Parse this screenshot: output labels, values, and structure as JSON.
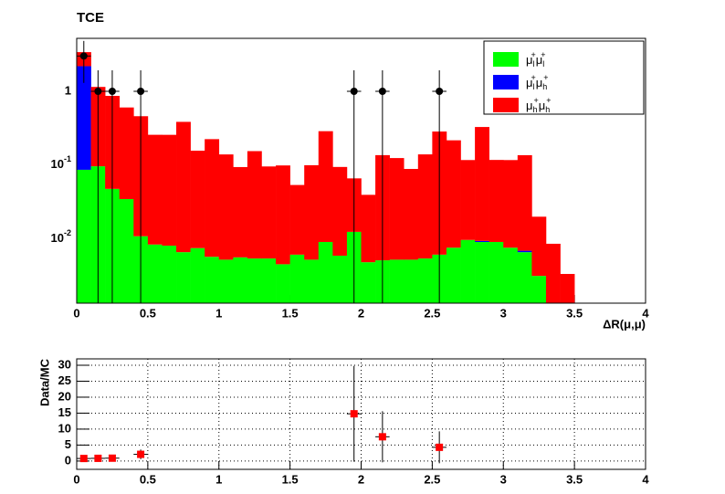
{
  "chart_data": [
    {
      "type": "histogram",
      "title": "TCE",
      "xlabel": "ΔR(μ,μ)",
      "bins": [
        0,
        0.1,
        0.2,
        0.3,
        0.4,
        0.5,
        0.6,
        0.7,
        0.8,
        0.9,
        1,
        1.1,
        1.2,
        1.3,
        1.4,
        1.5,
        1.6,
        1.7,
        1.8,
        1.9,
        2,
        2.1,
        2.2,
        2.3,
        2.4,
        2.5,
        2.6,
        2.7,
        2.8,
        2.9,
        3,
        3.1,
        3.2,
        3.3,
        3.4,
        3.5,
        3.6,
        3.7,
        3.8,
        3.9,
        4
      ],
      "series": [
        {
          "name": "μl+μl+",
          "color": "#00ff00",
          "values": [
            0.087,
            0.097,
            0.048,
            0.035,
            0.011,
            0.0085,
            0.0082,
            0.0067,
            0.0076,
            0.0058,
            0.0053,
            0.0057,
            0.0055,
            0.0055,
            0.0046,
            0.0062,
            0.0053,
            0.0092,
            0.006,
            0.0126,
            0.0049,
            0.0052,
            0.0053,
            0.0053,
            0.0055,
            0.0062,
            0.0077,
            0.0098,
            0.0092,
            0.0092,
            0.0077,
            0.0067,
            0.0032,
            0,
            0,
            0,
            0,
            0,
            0,
            0
          ]
        },
        {
          "name": "μl+μh+",
          "color": "#0000ff",
          "values": [
            2.1,
            0,
            0,
            0,
            0,
            0,
            0,
            0,
            0,
            0,
            0,
            0,
            0,
            0,
            0,
            0,
            0,
            0,
            0,
            0,
            0,
            0,
            0,
            0,
            0,
            0,
            0,
            0,
            0.0003,
            0,
            0,
            0.0003,
            0,
            0,
            0,
            0,
            0,
            0,
            0,
            0
          ]
        },
        {
          "name": "μh+μh+",
          "color": "#ff0000",
          "values": [
            1.2,
            1.05,
            0.82,
            0.57,
            0.45,
            0.25,
            0.25,
            0.38,
            0.15,
            0.22,
            0.135,
            0.089,
            0.15,
            0.091,
            0.095,
            0.048,
            0.095,
            0.28,
            0.089,
            0.054,
            0.035,
            0.132,
            0.12,
            0.084,
            0.135,
            0.28,
            0.21,
            0.108,
            0.32,
            0.109,
            0.11,
            0.13,
            0.017,
            0.0087,
            0.0034,
            0,
            0,
            0,
            0,
            0
          ]
        }
      ],
      "data_points": {
        "x": [
          0.05,
          0.15,
          0.25,
          0.45,
          1.95,
          2.15,
          2.55
        ],
        "values": [
          3,
          1,
          1,
          1,
          1,
          1,
          1
        ],
        "errors_low": [
          1.7,
          1,
          1,
          1,
          1,
          1,
          1
        ],
        "errors_high": [
          1.8,
          0.92,
          0.92,
          0.92,
          0.92,
          0.92,
          0.92
        ],
        "color": "#000000"
      },
      "xlim": [
        0,
        4
      ],
      "ylim": [
        0.00137,
        5.2
      ],
      "xticks": [
        0,
        0.5,
        1,
        1.5,
        2,
        2.5,
        3,
        3.5,
        4
      ],
      "yticks": [
        {
          "value": 0.01,
          "label": "10-2"
        },
        {
          "value": 0.1,
          "label": "10-1"
        },
        1
      ],
      "log_y": true,
      "legend": "upper-right"
    },
    {
      "type": "scatter",
      "ylabel": "Data/MC",
      "x": [
        0.05,
        0.15,
        0.25,
        0.45,
        1.95,
        2.15,
        2.55
      ],
      "values": [
        0.8,
        0.85,
        0.9,
        2.1,
        14.8,
        7.6,
        4.3
      ],
      "errors": [
        0.5,
        0.6,
        0.6,
        1.5,
        15,
        8,
        5
      ],
      "color": "#ff0000",
      "xlim": [
        0,
        4
      ],
      "ylim": [
        -2.6,
        32
      ],
      "xticks": [
        0,
        0.5,
        1,
        1.5,
        2,
        2.5,
        3,
        3.5,
        4
      ],
      "yticks": [
        0,
        5,
        10,
        15,
        20,
        25,
        30
      ],
      "grid": true
    }
  ]
}
